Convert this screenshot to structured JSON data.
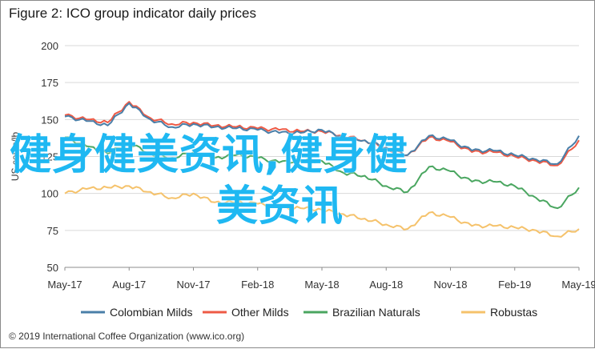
{
  "figure": {
    "title": "Figure 2: ICO group indicator daily prices",
    "credit": "© 2019 International Coffee Organization (www.ico.org)"
  },
  "watermark": {
    "line1": "健身健美资讯,健身健",
    "line2": "美资讯",
    "color": "#1fb8f2"
  },
  "chart_data": {
    "type": "line",
    "title": "Figure 2: ICO group indicator daily prices",
    "xlabel": "",
    "ylabel": "US cents/lb",
    "ylim": [
      50,
      200
    ],
    "yticks": [
      50,
      75,
      100,
      125,
      150,
      175,
      200
    ],
    "grid": true,
    "legend_position": "bottom",
    "x": [
      "May-17",
      "Jun-17",
      "Jul-17",
      "Aug-17",
      "Sep-17",
      "Oct-17",
      "Nov-17",
      "Dec-17",
      "Jan-18",
      "Feb-18",
      "Mar-18",
      "Apr-18",
      "May-18",
      "Jun-18",
      "Jul-18",
      "Aug-18",
      "Sep-18",
      "Oct-18",
      "Nov-18",
      "Dec-18",
      "Jan-19",
      "Feb-19",
      "Mar-19",
      "Apr-19",
      "May-19"
    ],
    "xticks": [
      "May-17",
      "Aug-17",
      "Nov-17",
      "Feb-18",
      "May-18",
      "Aug-18",
      "Nov-18",
      "Feb-19",
      "May-19"
    ],
    "series": [
      {
        "name": "Colombian Milds",
        "color": "#4a7fa8",
        "values": [
          152,
          149,
          146,
          161,
          150,
          145,
          147,
          145,
          144,
          143,
          141,
          141,
          143,
          138,
          136,
          131,
          126,
          139,
          136,
          129,
          129,
          126,
          123,
          120,
          139
        ]
      },
      {
        "name": "Other Milds",
        "color": "#ee5a45",
        "values": [
          153,
          150,
          148,
          162,
          151,
          147,
          148,
          146,
          145,
          144,
          143,
          142,
          142,
          139,
          136,
          130,
          126,
          138,
          135,
          128,
          128,
          125,
          122,
          119,
          136
        ]
      },
      {
        "name": "Brazilian Naturals",
        "color": "#4aa660",
        "values": [
          138,
          132,
          127,
          134,
          127,
          124,
          128,
          124,
          126,
          124,
          121,
          122,
          122,
          114,
          112,
          105,
          101,
          118,
          115,
          108,
          108,
          105,
          97,
          90,
          104
        ]
      },
      {
        "name": "Robustas",
        "color": "#f5c26b",
        "values": [
          100,
          103,
          104,
          105,
          101,
          97,
          100,
          94,
          94,
          93,
          90,
          90,
          89,
          86,
          83,
          79,
          76,
          87,
          84,
          78,
          78,
          77,
          75,
          71,
          76
        ]
      }
    ]
  }
}
